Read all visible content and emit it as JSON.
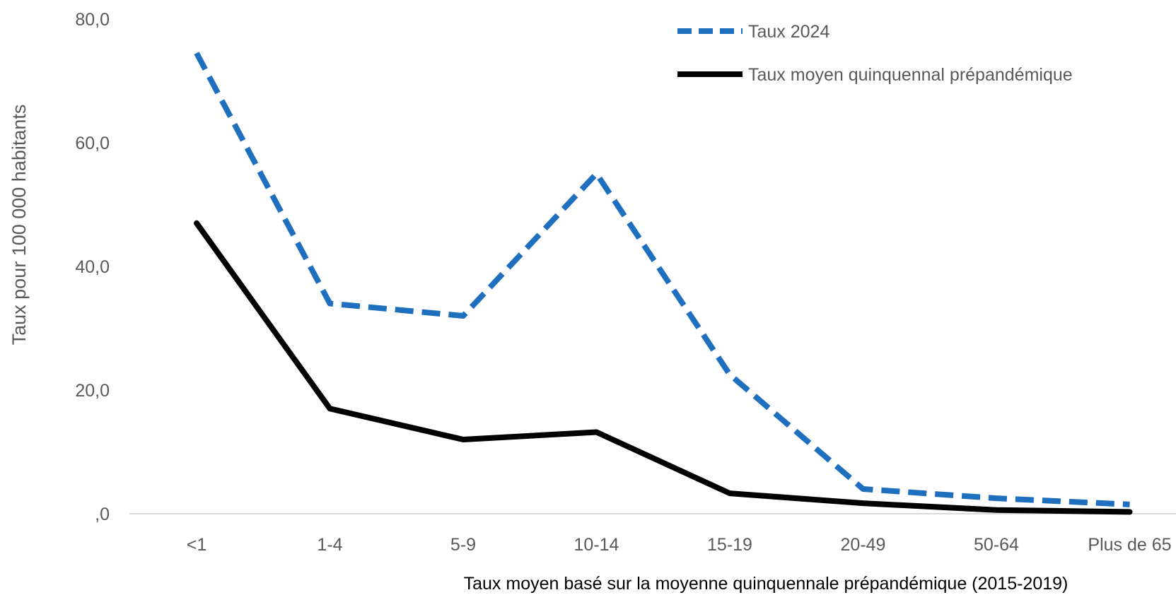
{
  "chart_data": {
    "type": "line",
    "title": "",
    "xlabel": "Taux moyen basé sur la moyenne quinquennale prépandémique (2015-2019)",
    "ylabel": "Taux pour 100 000 habitants",
    "categories": [
      "<1",
      "1-4",
      "5-9",
      "10-14",
      "15-19",
      "20-49",
      "50-64",
      "Plus de 65"
    ],
    "ylim": [
      0,
      80
    ],
    "yticks": [
      {
        "value": 0,
        "label": ",0"
      },
      {
        "value": 20,
        "label": "20,0"
      },
      {
        "value": 40,
        "label": "40,0"
      },
      {
        "value": 60,
        "label": "60,0"
      },
      {
        "value": 80,
        "label": "80,0"
      }
    ],
    "grid": false,
    "legend_position": "top-right",
    "series": [
      {
        "name": "Taux 2024",
        "values": [
          74.5,
          34.0,
          32.0,
          55.0,
          22.5,
          4.0,
          2.5,
          1.5
        ],
        "color": "#1f6fbf",
        "style": "dashed"
      },
      {
        "name": "Taux moyen quinquennal prépandémique",
        "values": [
          47.0,
          17.0,
          12.0,
          13.2,
          3.3,
          1.7,
          0.6,
          0.3
        ],
        "color": "#000000",
        "style": "solid"
      }
    ]
  }
}
